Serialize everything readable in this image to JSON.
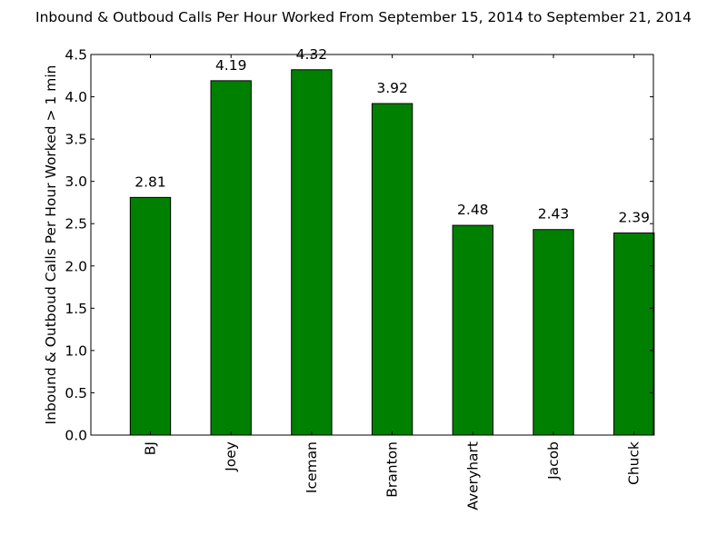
{
  "chart_data": {
    "type": "bar",
    "title": "Inbound & Outboud Calls Per Hour Worked From September 15, 2014 to September 21, 2014",
    "xlabel": "",
    "ylabel": "Inbound & Outboud Calls Per Hour Worked > 1 min",
    "categories": [
      "BJ",
      "Joey",
      "Iceman",
      "Branton",
      "Averyhart",
      "Jacob",
      "Chuck"
    ],
    "values": [
      2.81,
      4.19,
      4.32,
      3.92,
      2.48,
      2.43,
      2.39
    ],
    "data_labels": [
      "2.81",
      "4.19",
      "4.32",
      "3.92",
      "2.48",
      "2.43",
      "2.39"
    ],
    "ylim": [
      0,
      4.5
    ],
    "yticks": [
      "0.0",
      "0.5",
      "1.0",
      "1.5",
      "2.0",
      "2.5",
      "3.0",
      "3.5",
      "4.0",
      "4.5"
    ],
    "bar_color": "#008000",
    "grid": false,
    "legend": "none"
  }
}
